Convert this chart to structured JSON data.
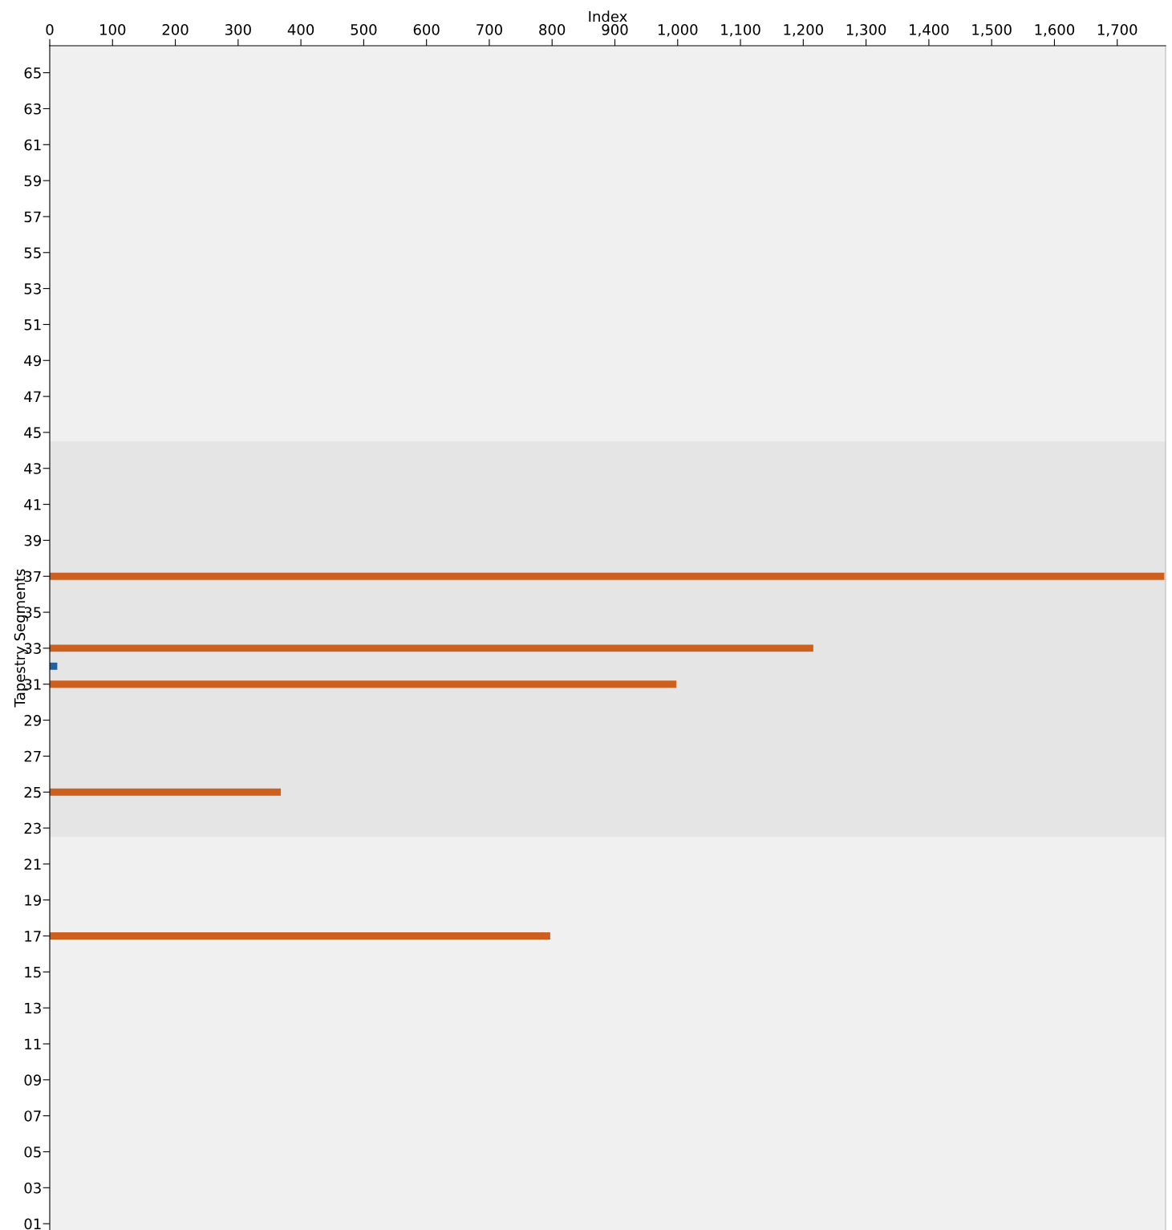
{
  "chart_data": {
    "type": "bar",
    "orientation": "horizontal",
    "xlabel": "Index",
    "ylabel": "Tapestry Segments",
    "series": [
      {
        "color": "#cd5f1f",
        "x": [
          37,
          33,
          31,
          25,
          17
        ],
        "values": [
          1775,
          1216,
          998,
          368,
          797
        ]
      },
      {
        "color": "#22609f",
        "x": [
          32
        ],
        "values": [
          12
        ]
      }
    ],
    "xlim": [
      0,
      1777
    ],
    "xticks": [
      0,
      100,
      200,
      300,
      400,
      500,
      600,
      700,
      800,
      900,
      {
        "value": 1000,
        "label": "1,000"
      },
      {
        "value": 1100,
        "label": "1,100"
      },
      {
        "value": 1200,
        "label": "1,200"
      },
      {
        "value": 1300,
        "label": "1,300"
      },
      {
        "value": 1400,
        "label": "1,400"
      },
      {
        "value": 1500,
        "label": "1,500"
      },
      {
        "value": 1600,
        "label": "1,600"
      },
      {
        "value": 1700,
        "label": "1,700"
      }
    ],
    "ylim": [
      0.65,
      66.5
    ],
    "yticks": [
      {
        "value": 1,
        "label": "01"
      },
      {
        "value": 3,
        "label": "03"
      },
      {
        "value": 5,
        "label": "05"
      },
      {
        "value": 7,
        "label": "07"
      },
      {
        "value": 9,
        "label": "09"
      },
      11,
      13,
      15,
      17,
      19,
      21,
      23,
      25,
      27,
      29,
      31,
      33,
      35,
      37,
      39,
      41,
      43,
      45,
      47,
      49,
      51,
      53,
      55,
      57,
      59,
      61,
      63,
      65
    ],
    "bands": [
      {
        "axis": "y",
        "from": 22.5,
        "to": 44.5,
        "color": "#e5e5e5"
      }
    ],
    "grid": false,
    "legend": false
  }
}
